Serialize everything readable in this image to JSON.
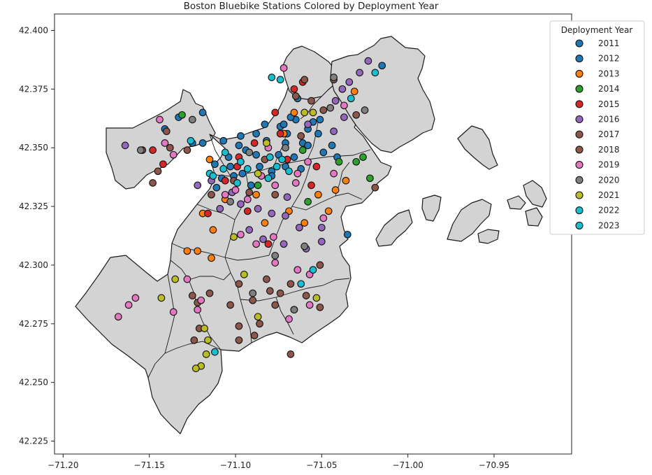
{
  "chart_data": {
    "type": "scatter",
    "title": "Boston Bluebike Stations Colored by Deployment Year",
    "xlim": [
      -71.205,
      -70.905
    ],
    "ylim": [
      42.2195,
      42.407
    ],
    "x_ticks": [
      -71.2,
      -71.15,
      -71.1,
      -71.05,
      -71.0,
      -70.95
    ],
    "x_tick_labels": [
      "−71.20",
      "−71.15",
      "−71.10",
      "−71.05",
      "−71.00",
      "−70.95"
    ],
    "y_ticks": [
      42.225,
      42.25,
      42.275,
      42.3,
      42.325,
      42.35,
      42.375,
      42.4
    ],
    "y_tick_labels": [
      "42.225",
      "42.250",
      "42.275",
      "42.300",
      "42.325",
      "42.350",
      "42.375",
      "42.400"
    ],
    "legend": {
      "title": "Deployment Year",
      "placement": "top-right outside",
      "entries": [
        {
          "label": "2011",
          "color": "#1f77b4"
        },
        {
          "label": "2012",
          "color": "#1f77b4"
        },
        {
          "label": "2013",
          "color": "#ff7f0e"
        },
        {
          "label": "2014",
          "color": "#2ca02c"
        },
        {
          "label": "2015",
          "color": "#d62728"
        },
        {
          "label": "2016",
          "color": "#9467bd"
        },
        {
          "label": "2017",
          "color": "#8c564b"
        },
        {
          "label": "2018",
          "color": "#8c564b"
        },
        {
          "label": "2019",
          "color": "#e377c2"
        },
        {
          "label": "2020",
          "color": "#7f7f7f"
        },
        {
          "label": "2021",
          "color": "#bcbd22"
        },
        {
          "label": "2022",
          "color": "#17becf"
        },
        {
          "label": "2023",
          "color": "#17becf"
        }
      ]
    },
    "series": [
      {
        "name": "2011",
        "points": [
          [
            -71.098,
            42.351
          ],
          [
            -71.094,
            42.349
          ],
          [
            -71.088,
            42.347
          ],
          [
            -71.082,
            42.353
          ],
          [
            -71.075,
            42.347
          ],
          [
            -71.071,
            42.352
          ],
          [
            -71.066,
            42.346
          ],
          [
            -71.061,
            42.352
          ],
          [
            -71.058,
            42.358
          ],
          [
            -71.055,
            42.361
          ],
          [
            -71.065,
            42.362
          ],
          [
            -71.07,
            42.356
          ],
          [
            -71.104,
            42.346
          ],
          [
            -71.101,
            42.338
          ],
          [
            -71.112,
            42.343
          ],
          [
            -71.052,
            42.356
          ],
          [
            -71.044,
            42.351
          ],
          [
            -71.062,
            42.341
          ],
          [
            -71.086,
            42.342
          ],
          [
            -71.079,
            42.34
          ],
          [
            -71.091,
            42.334
          ]
        ]
      },
      {
        "name": "2012",
        "points": [
          [
            -71.119,
            42.365
          ],
          [
            -71.125,
            42.352
          ],
          [
            -71.119,
            42.352
          ],
          [
            -71.141,
            42.358
          ],
          [
            -71.133,
            42.363
          ],
          [
            -71.097,
            42.355
          ],
          [
            -71.088,
            42.356
          ],
          [
            -71.083,
            42.36
          ],
          [
            -71.074,
            42.359
          ],
          [
            -71.068,
            42.363
          ],
          [
            -71.058,
            42.351
          ],
          [
            -71.049,
            42.348
          ],
          [
            -71.041,
            42.346
          ],
          [
            -71.051,
            42.362
          ],
          [
            -71.064,
            42.371
          ],
          [
            -71.079,
            42.338
          ],
          [
            -71.071,
            42.342
          ],
          [
            -71.103,
            42.342
          ],
          [
            -71.096,
            42.339
          ],
          [
            -71.108,
            42.337
          ],
          [
            -71.111,
            42.333
          ],
          [
            -71.015,
            42.385
          ],
          [
            -71.035,
            42.313
          ],
          [
            -71.107,
            42.353
          ],
          [
            -71.072,
            42.36
          ]
        ]
      },
      {
        "name": "2013",
        "points": [
          [
            -71.119,
            42.322
          ],
          [
            -71.113,
            42.315
          ],
          [
            -71.122,
            42.306
          ],
          [
            -71.114,
            42.303
          ],
          [
            -71.088,
            42.33
          ],
          [
            -71.083,
            42.318
          ],
          [
            -71.069,
            42.323
          ],
          [
            -71.06,
            42.318
          ],
          [
            -71.052,
            42.33
          ],
          [
            -71.046,
            42.323
          ],
          [
            -71.036,
            42.336
          ],
          [
            -71.042,
            42.332
          ],
          [
            -71.072,
            42.356
          ],
          [
            -71.066,
            42.365
          ],
          [
            -71.031,
            42.374
          ],
          [
            -71.115,
            42.345
          ],
          [
            -71.106,
            42.328
          ],
          [
            -71.128,
            42.306
          ]
        ]
      },
      {
        "name": "2014",
        "points": [
          [
            -71.131,
            42.364
          ],
          [
            -71.04,
            42.344
          ],
          [
            -71.03,
            42.344
          ],
          [
            -71.026,
            42.346
          ],
          [
            -71.058,
            42.327
          ],
          [
            -71.061,
            42.349
          ],
          [
            -71.087,
            42.334
          ],
          [
            -71.022,
            42.337
          ]
        ]
      },
      {
        "name": "2015",
        "points": [
          [
            -71.148,
            42.349
          ],
          [
            -71.142,
            42.343
          ],
          [
            -71.066,
            42.375
          ],
          [
            -71.061,
            42.378
          ],
          [
            -71.077,
            42.365
          ],
          [
            -71.074,
            42.356
          ],
          [
            -71.089,
            42.352
          ],
          [
            -71.098,
            42.346
          ],
          [
            -71.093,
            42.323
          ],
          [
            -71.081,
            42.309
          ],
          [
            -71.099,
            42.342
          ],
          [
            -71.053,
            42.342
          ],
          [
            -71.056,
            42.334
          ],
          [
            -71.106,
            42.336
          ],
          [
            -71.07,
            42.345
          ],
          [
            -71.116,
            42.322
          ]
        ]
      },
      {
        "name": "2016",
        "points": [
          [
            -71.164,
            42.351
          ],
          [
            -71.122,
            42.334
          ],
          [
            -71.097,
            42.326
          ],
          [
            -71.087,
            42.324
          ],
          [
            -71.079,
            42.322
          ],
          [
            -71.071,
            42.321
          ],
          [
            -71.063,
            42.316
          ],
          [
            -71.05,
            42.316
          ],
          [
            -71.092,
            42.315
          ],
          [
            -71.084,
            42.311
          ],
          [
            -71.072,
            42.309
          ],
          [
            -71.059,
            42.307
          ],
          [
            -71.05,
            42.31
          ],
          [
            -71.042,
            42.37
          ],
          [
            -71.038,
            42.375
          ],
          [
            -71.034,
            42.378
          ],
          [
            -71.028,
            42.382
          ],
          [
            -71.043,
            42.357
          ],
          [
            -71.058,
            42.36
          ],
          [
            -71.102,
            42.331
          ],
          [
            -71.109,
            42.324
          ],
          [
            -71.114,
            42.336
          ],
          [
            -71.023,
            42.387
          ],
          [
            -71.037,
            42.363
          ],
          [
            -71.07,
            42.329
          ]
        ]
      },
      {
        "name": "2017",
        "points": [
          [
            -71.145,
            42.34
          ],
          [
            -71.148,
            42.335
          ],
          [
            -71.14,
            42.357
          ],
          [
            -71.128,
            42.349
          ],
          [
            -71.06,
            42.379
          ],
          [
            -71.065,
            42.372
          ],
          [
            -71.056,
            42.37
          ],
          [
            -71.101,
            42.336
          ],
          [
            -71.092,
            42.331
          ],
          [
            -71.051,
            42.3
          ],
          [
            -71.059,
            42.287
          ],
          [
            -71.082,
            42.294
          ],
          [
            -71.068,
            42.292
          ],
          [
            -71.08,
            42.289
          ],
          [
            -71.098,
            42.274
          ],
          [
            -71.089,
            42.27
          ],
          [
            -71.115,
            42.288
          ],
          [
            -71.125,
            42.287
          ],
          [
            -71.043,
            42.379
          ],
          [
            -71.049,
            42.366
          ],
          [
            -71.03,
            42.364
          ],
          [
            -71.019,
            42.333
          ],
          [
            -71.114,
            42.33
          ],
          [
            -71.077,
            42.33
          ]
        ]
      },
      {
        "name": "2018",
        "points": [
          [
            -71.154,
            42.349
          ],
          [
            -71.138,
            42.35
          ],
          [
            -71.098,
            42.292
          ],
          [
            -71.103,
            42.283
          ],
          [
            -71.09,
            42.285
          ],
          [
            -71.077,
            42.283
          ],
          [
            -71.086,
            42.275
          ],
          [
            -71.098,
            42.268
          ],
          [
            -71.068,
            42.262
          ],
          [
            -71.074,
            42.288
          ],
          [
            -71.083,
            42.345
          ],
          [
            -71.062,
            42.355
          ],
          [
            -71.124,
            42.268
          ],
          [
            -71.051,
            42.282
          ],
          [
            -71.121,
            42.273
          ],
          [
            -71.122,
            42.284
          ]
        ]
      },
      {
        "name": "2019",
        "points": [
          [
            -71.168,
            42.278
          ],
          [
            -71.162,
            42.283
          ],
          [
            -71.158,
            42.286
          ],
          [
            -71.136,
            42.28
          ],
          [
            -71.128,
            42.294
          ],
          [
            -71.12,
            42.285
          ],
          [
            -71.122,
            42.281
          ],
          [
            -71.144,
            42.362
          ],
          [
            -71.141,
            42.352
          ],
          [
            -71.136,
            42.347
          ],
          [
            -71.1,
            42.332
          ],
          [
            -71.093,
            42.328
          ],
          [
            -71.077,
            42.334
          ],
          [
            -71.065,
            42.335
          ],
          [
            -71.058,
            42.344
          ],
          [
            -71.064,
            42.339
          ],
          [
            -71.043,
            42.339
          ],
          [
            -71.049,
            42.32
          ],
          [
            -71.097,
            42.313
          ],
          [
            -71.088,
            42.309
          ],
          [
            -71.077,
            42.301
          ],
          [
            -71.064,
            42.298
          ],
          [
            -71.069,
            42.277
          ],
          [
            -71.057,
            42.296
          ],
          [
            -71.085,
            42.338
          ],
          [
            -71.078,
            42.312
          ],
          [
            -71.066,
            42.281
          ],
          [
            -71.037,
            42.368
          ],
          [
            -71.072,
            42.384
          ],
          [
            -71.081,
            42.35
          ],
          [
            -71.106,
            42.33
          ],
          [
            -71.057,
            42.283
          ]
        ]
      },
      {
        "name": "2020",
        "points": [
          [
            -71.155,
            42.349
          ],
          [
            -71.125,
            42.362
          ],
          [
            -71.103,
            42.327
          ],
          [
            -71.09,
            42.288
          ],
          [
            -71.077,
            42.304
          ],
          [
            -71.06,
            42.308
          ],
          [
            -71.066,
            42.281
          ],
          [
            -71.045,
            42.367
          ],
          [
            -71.043,
            42.38
          ],
          [
            -71.025,
            42.366
          ],
          [
            -71.092,
            42.348
          ],
          [
            -71.071,
            42.35
          ]
        ]
      },
      {
        "name": "2021",
        "points": [
          [
            -71.135,
            42.294
          ],
          [
            -71.143,
            42.286
          ],
          [
            -71.118,
            42.273
          ],
          [
            -71.116,
            42.268
          ],
          [
            -71.117,
            42.262
          ],
          [
            -71.12,
            42.257
          ],
          [
            -71.123,
            42.256
          ],
          [
            -71.095,
            42.296
          ],
          [
            -71.087,
            42.278
          ],
          [
            -71.101,
            42.312
          ],
          [
            -71.055,
            42.365
          ],
          [
            -71.087,
            42.339
          ],
          [
            -71.053,
            42.286
          ],
          [
            -71.082,
            42.352
          ],
          [
            -71.06,
            42.365
          ]
        ]
      },
      {
        "name": "2022",
        "points": [
          [
            -71.106,
            42.348
          ],
          [
            -71.097,
            42.344
          ],
          [
            -71.08,
            42.346
          ],
          [
            -71.069,
            42.34
          ],
          [
            -71.055,
            42.298
          ],
          [
            -71.062,
            42.292
          ],
          [
            -71.112,
            42.263
          ],
          [
            -71.079,
            42.38
          ],
          [
            -71.107,
            42.341
          ],
          [
            -71.033,
            42.371
          ],
          [
            -71.019,
            42.382
          ],
          [
            -71.115,
            42.339
          ],
          [
            -71.076,
            42.342
          ]
        ]
      },
      {
        "name": "2023",
        "points": [
          [
            -71.113,
            42.338
          ],
          [
            -71.099,
            42.335
          ],
          [
            -71.081,
            42.337
          ],
          [
            -71.073,
            42.345
          ],
          [
            -71.093,
            42.341
          ],
          [
            -71.126,
            42.353
          ],
          [
            -71.074,
            42.379
          ]
        ]
      }
    ]
  }
}
